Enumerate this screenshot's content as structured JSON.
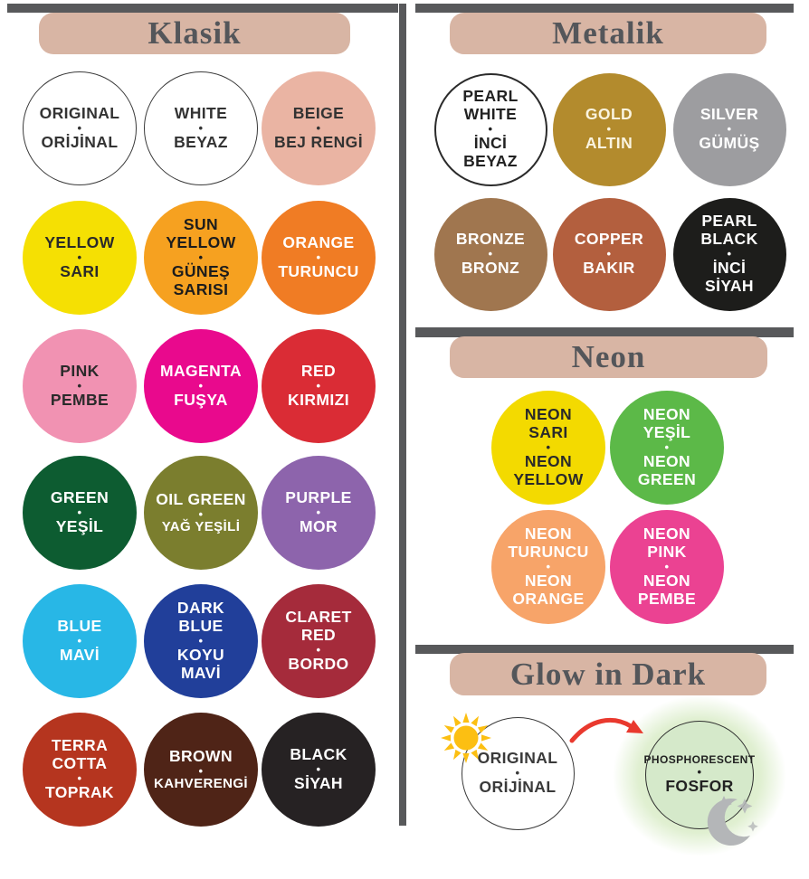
{
  "chrome": {
    "bar_color": "#58595b",
    "header_bg": "#d8b5a4",
    "header_text_color": "#54565a"
  },
  "sections": [
    {
      "id": "klasik",
      "title": "Klasik",
      "circles": [
        {
          "name": "original",
          "top": [
            "ORIGINAL"
          ],
          "separator": "•",
          "bottom": [
            "ORİJİNAL"
          ],
          "bg": "#ffffff",
          "fg": "#333333",
          "border": "#3a3a3a",
          "border_w": 1.5
        },
        {
          "name": "white",
          "top": [
            "WHITE"
          ],
          "separator": "•",
          "bottom": [
            "BEYAZ"
          ],
          "bg": "#ffffff",
          "fg": "#333333",
          "border": "#3a3a3a",
          "border_w": 1.5
        },
        {
          "name": "beige",
          "top": [
            "BEIGE"
          ],
          "separator": "•",
          "bottom": [
            "BEJ RENGİ"
          ],
          "bg": "#eab4a3",
          "fg": "#333333"
        },
        {
          "name": "yellow",
          "top": [
            "YELLOW"
          ],
          "separator": "•",
          "bottom": [
            "SARI"
          ],
          "bg": "#f5e003",
          "fg": "#2a2a2a"
        },
        {
          "name": "sun-yellow",
          "top": [
            "SUN",
            "YELLOW"
          ],
          "separator": "•",
          "bottom": [
            "GÜNEŞ",
            "SARISI"
          ],
          "bg": "#f6a120",
          "fg": "#1c1c1c"
        },
        {
          "name": "orange",
          "top": [
            "ORANGE"
          ],
          "separator": "•",
          "bottom": [
            "TURUNCU"
          ],
          "bg": "#f07c24",
          "fg": "#ffffff"
        },
        {
          "name": "pink",
          "top": [
            "PINK"
          ],
          "separator": "•",
          "bottom": [
            "PEMBE"
          ],
          "bg": "#f192b2",
          "fg": "#2a2a2a"
        },
        {
          "name": "magenta",
          "top": [
            "MAGENTA"
          ],
          "separator": "•",
          "bottom": [
            "FUŞYA"
          ],
          "bg": "#e9098d",
          "fg": "#ffffff"
        },
        {
          "name": "red",
          "top": [
            "RED"
          ],
          "separator": "•",
          "bottom": [
            "KIRMIZI"
          ],
          "bg": "#da2c35",
          "fg": "#ffffff"
        },
        {
          "name": "green",
          "top": [
            "GREEN"
          ],
          "separator": "•",
          "bottom": [
            "YEŞİL"
          ],
          "bg": "#0d5c31",
          "fg": "#ffffff"
        },
        {
          "name": "oil-green",
          "top": [
            "OIL GREEN"
          ],
          "separator": "•",
          "bottom": [
            "YAĞ YEŞİLİ"
          ],
          "bg": "#7b7e2e",
          "fg": "#ffffff"
        },
        {
          "name": "purple",
          "top": [
            "PURPLE"
          ],
          "separator": "•",
          "bottom": [
            "MOR"
          ],
          "bg": "#8d64ac",
          "fg": "#ffffff"
        },
        {
          "name": "blue",
          "top": [
            "BLUE"
          ],
          "separator": "•",
          "bottom": [
            "MAVİ"
          ],
          "bg": "#28b7e6",
          "fg": "#ffffff"
        },
        {
          "name": "dark-blue",
          "top": [
            "DARK",
            "BLUE"
          ],
          "separator": "•",
          "bottom": [
            "KOYU",
            "MAVİ"
          ],
          "bg": "#213f9a",
          "fg": "#ffffff"
        },
        {
          "name": "claret-red",
          "top": [
            "CLARET",
            "RED"
          ],
          "separator": "•",
          "bottom": [
            "BORDO"
          ],
          "bg": "#a52b3b",
          "fg": "#ffffff"
        },
        {
          "name": "terra-cotta",
          "top": [
            "TERRA",
            "COTTA"
          ],
          "separator": "•",
          "bottom": [
            "TOPRAK"
          ],
          "bg": "#b5351f",
          "fg": "#ffffff"
        },
        {
          "name": "brown",
          "top": [
            "BROWN"
          ],
          "separator": "•",
          "bottom": [
            "KAHVERENGİ"
          ],
          "bg": "#4f2417",
          "fg": "#ffffff"
        },
        {
          "name": "black",
          "top": [
            "BLACK"
          ],
          "separator": "•",
          "bottom": [
            "SİYAH"
          ],
          "bg": "#262223",
          "fg": "#ffffff"
        }
      ]
    },
    {
      "id": "metalik",
      "title": "Metalik",
      "circles": [
        {
          "name": "pearl-white",
          "top": [
            "PEARL",
            "WHITE"
          ],
          "separator": "•",
          "bottom": [
            "İNCİ",
            "BEYAZ"
          ],
          "bg": "#ffffff",
          "fg": "#222222",
          "border": "#2b2b2b",
          "border_w": 2.5
        },
        {
          "name": "gold",
          "top": [
            "GOLD"
          ],
          "separator": "•",
          "bottom": [
            "ALTIN"
          ],
          "bg": "#b38b2d",
          "fg": "#faf4e0"
        },
        {
          "name": "silver",
          "top": [
            "SILVER"
          ],
          "separator": "•",
          "bottom": [
            "GÜMÜŞ"
          ],
          "bg": "#9d9da0",
          "fg": "#ffffff"
        },
        {
          "name": "bronze",
          "top": [
            "BRONZE"
          ],
          "separator": "•",
          "bottom": [
            "BRONZ"
          ],
          "bg": "#a0764f",
          "fg": "#ffffff"
        },
        {
          "name": "copper",
          "top": [
            "COPPER"
          ],
          "separator": "•",
          "bottom": [
            "BAKIR"
          ],
          "bg": "#b35f3e",
          "fg": "#ffffff"
        },
        {
          "name": "pearl-black",
          "top": [
            "PEARL",
            "BLACK"
          ],
          "separator": "•",
          "bottom": [
            "İNCİ",
            "SİYAH"
          ],
          "bg": "#1d1d1b",
          "fg": "#ffffff"
        }
      ]
    },
    {
      "id": "neon",
      "title": "Neon",
      "circles": [
        {
          "name": "neon-yellow",
          "top": [
            "NEON",
            "SARI"
          ],
          "separator": "•",
          "bottom": [
            "NEON",
            "YELLOW"
          ],
          "bg": "#f3da00",
          "fg": "#2a2a2a"
        },
        {
          "name": "neon-green",
          "top": [
            "NEON",
            "YEŞİL"
          ],
          "separator": "•",
          "bottom": [
            "NEON",
            "GREEN"
          ],
          "bg": "#5cb948",
          "fg": "#ffffff"
        },
        {
          "name": "neon-orange",
          "top": [
            "NEON",
            "TURUNCU"
          ],
          "separator": "•",
          "bottom": [
            "NEON",
            "ORANGE"
          ],
          "bg": "#f7a469",
          "fg": "#ffffff"
        },
        {
          "name": "neon-pink",
          "top": [
            "NEON",
            "PINK"
          ],
          "separator": "•",
          "bottom": [
            "NEON",
            "PEMBE"
          ],
          "bg": "#eb4292",
          "fg": "#ffffff"
        }
      ]
    },
    {
      "id": "glow",
      "title": "Glow in Dark",
      "icons": [
        "sun-icon",
        "curved-arrow-icon",
        "crescent-moon-stars-icon"
      ],
      "sun_color": "#fcbf12",
      "arrow_color": "#e9392e",
      "moon_color": "#b4b6b8",
      "halo_color": "#cbe5b2",
      "circles": [
        {
          "name": "glow-original",
          "top": [
            "ORIGINAL"
          ],
          "separator": "•",
          "bottom": [
            "ORİJİNAL"
          ],
          "bg": "#ffffff",
          "fg": "#3a3a3a",
          "border": "#3a3a3a",
          "border_w": 1.5
        },
        {
          "name": "phosphorescent",
          "top": [
            "PHOSPHORESCENT"
          ],
          "separator": "•",
          "bottom": [
            "FOSFOR"
          ],
          "bg": "#d5e9ca",
          "fg": "#222222",
          "border": "#2f2f2f",
          "border_w": 1.5
        }
      ]
    }
  ],
  "chart_data": {
    "type": "table",
    "title": "Color chart with Turkish/English color names",
    "groups": [
      {
        "group": "Klasik",
        "colors": [
          {
            "en": "ORIGINAL",
            "tr": "ORİJİNAL",
            "hex": "#ffffff"
          },
          {
            "en": "WHITE",
            "tr": "BEYAZ",
            "hex": "#ffffff"
          },
          {
            "en": "BEIGE",
            "tr": "BEJ RENGİ",
            "hex": "#eab4a3"
          },
          {
            "en": "YELLOW",
            "tr": "SARI",
            "hex": "#f5e003"
          },
          {
            "en": "SUN YELLOW",
            "tr": "GÜNEŞ SARISI",
            "hex": "#f6a120"
          },
          {
            "en": "ORANGE",
            "tr": "TURUNCU",
            "hex": "#f07c24"
          },
          {
            "en": "PINK",
            "tr": "PEMBE",
            "hex": "#f192b2"
          },
          {
            "en": "MAGENTA",
            "tr": "FUŞYA",
            "hex": "#e9098d"
          },
          {
            "en": "RED",
            "tr": "KIRMIZI",
            "hex": "#da2c35"
          },
          {
            "en": "GREEN",
            "tr": "YEŞİL",
            "hex": "#0d5c31"
          },
          {
            "en": "OIL GREEN",
            "tr": "YAĞ YEŞİLİ",
            "hex": "#7b7e2e"
          },
          {
            "en": "PURPLE",
            "tr": "MOR",
            "hex": "#8d64ac"
          },
          {
            "en": "BLUE",
            "tr": "MAVİ",
            "hex": "#28b7e6"
          },
          {
            "en": "DARK BLUE",
            "tr": "KOYU MAVİ",
            "hex": "#213f9a"
          },
          {
            "en": "CLARET RED",
            "tr": "BORDO",
            "hex": "#a52b3b"
          },
          {
            "en": "TERRA COTTA",
            "tr": "TOPRAK",
            "hex": "#b5351f"
          },
          {
            "en": "BROWN",
            "tr": "KAHVERENGİ",
            "hex": "#4f2417"
          },
          {
            "en": "BLACK",
            "tr": "SİYAH",
            "hex": "#262223"
          }
        ]
      },
      {
        "group": "Metalik",
        "colors": [
          {
            "en": "PEARL WHITE",
            "tr": "İNCİ BEYAZ",
            "hex": "#ffffff"
          },
          {
            "en": "GOLD",
            "tr": "ALTIN",
            "hex": "#b38b2d"
          },
          {
            "en": "SILVER",
            "tr": "GÜMÜŞ",
            "hex": "#9d9da0"
          },
          {
            "en": "BRONZE",
            "tr": "BRONZ",
            "hex": "#a0764f"
          },
          {
            "en": "COPPER",
            "tr": "BAKIR",
            "hex": "#b35f3e"
          },
          {
            "en": "PEARL BLACK",
            "tr": "İNCİ SİYAH",
            "hex": "#1d1d1b"
          }
        ]
      },
      {
        "group": "Neon",
        "colors": [
          {
            "tr": "NEON SARI",
            "en": "NEON YELLOW",
            "hex": "#f3da00"
          },
          {
            "tr": "NEON YEŞİL",
            "en": "NEON GREEN",
            "hex": "#5cb948"
          },
          {
            "tr": "NEON TURUNCU",
            "en": "NEON ORANGE",
            "hex": "#f7a469"
          },
          {
            "en": "NEON PINK",
            "tr": "NEON PEMBE",
            "hex": "#eb4292"
          }
        ]
      },
      {
        "group": "Glow in Dark",
        "colors": [
          {
            "en": "ORIGINAL",
            "tr": "ORİJİNAL",
            "hex": "#ffffff"
          },
          {
            "en": "PHOSPHORESCENT",
            "tr": "FOSFOR",
            "hex": "#d5e9ca"
          }
        ]
      }
    ]
  }
}
